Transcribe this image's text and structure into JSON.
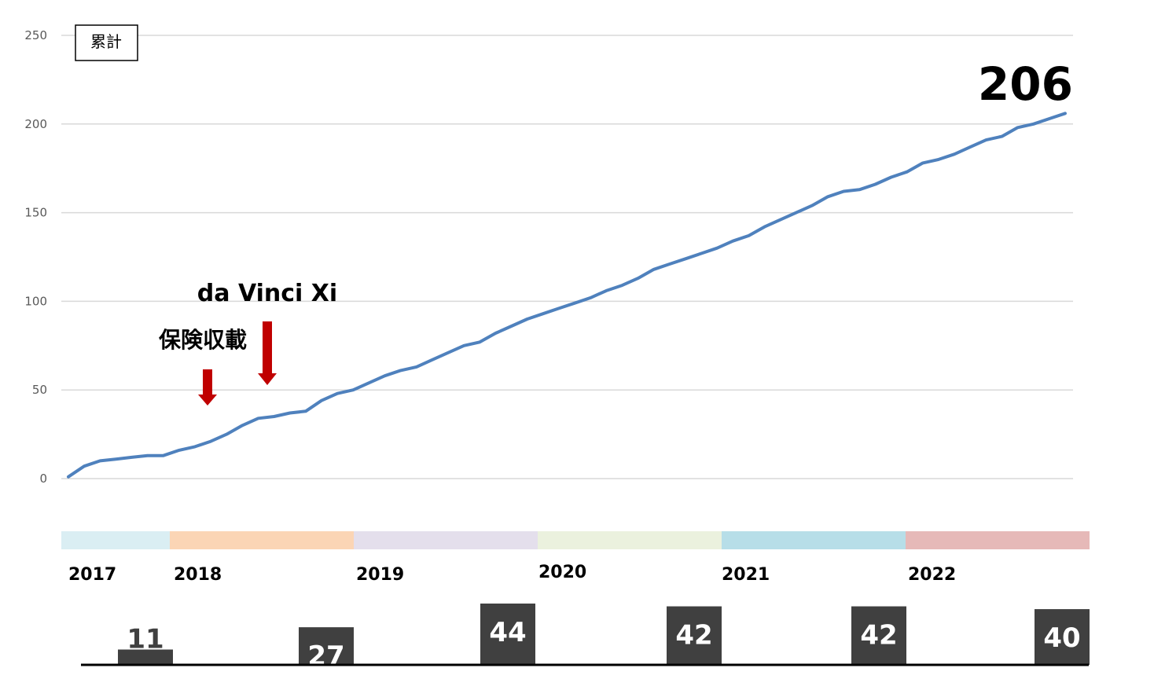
{
  "chart_data": [
    {
      "type": "line",
      "title": "",
      "legend_box_label": "累計",
      "ylim": [
        0,
        250
      ],
      "y_ticks": [
        "0",
        "50",
        "100",
        "150",
        "200",
        "250"
      ],
      "grid": true,
      "series": [
        {
          "color": "#4F81BD",
          "y": [
            1,
            7,
            10,
            11,
            12,
            13,
            13,
            16,
            18,
            21,
            25,
            30,
            34,
            35,
            37,
            38,
            44,
            48,
            50,
            54,
            58,
            61,
            63,
            67,
            71,
            75,
            77,
            82,
            86,
            90,
            93,
            96,
            99,
            102,
            106,
            109,
            113,
            118,
            121,
            124,
            127,
            130,
            134,
            137,
            142,
            146,
            150,
            154,
            159,
            162,
            163,
            166,
            170,
            173,
            178,
            180,
            183,
            187,
            191,
            193,
            198,
            200,
            203,
            206
          ]
        }
      ],
      "end_label": "206",
      "annotations": [
        {
          "label": "保険収載",
          "color": "#C00000"
        },
        {
          "label": "da Vinci Xi",
          "color": "#C00000"
        }
      ],
      "year_bands": [
        {
          "year": "2017",
          "color": "#DAEEF3"
        },
        {
          "year": "2018",
          "color": "#FBD5B5"
        },
        {
          "year": "2019",
          "color": "#E4DFEC"
        },
        {
          "year": "2020",
          "color": "#EBF1DE"
        },
        {
          "year": "2021",
          "color": "#B7DEE8"
        },
        {
          "year": "2022",
          "color": "#E6B9B8"
        }
      ]
    },
    {
      "type": "bar",
      "categories": [
        "2017",
        "2018",
        "2019",
        "2020",
        "2021",
        "2022"
      ],
      "values": [
        11,
        27,
        44,
        42,
        42,
        40
      ],
      "bar_color": "#404040",
      "label_colors": [
        "#404040",
        "#ffffff",
        "#ffffff",
        "#ffffff",
        "#ffffff",
        "#ffffff"
      ]
    }
  ]
}
